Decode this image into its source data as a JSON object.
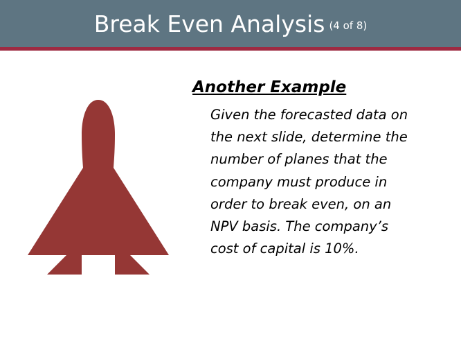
{
  "slide": {
    "title": "Break Even Analysis",
    "title_counter": "(4 of 8)",
    "subheading": "Another Example",
    "body": "Given the forecasted data on the next slide, determine the number of planes that the company must produce in order to break even, on an NPV basis. The company’s cost of capital is 10%."
  },
  "colors": {
    "title_bar": "#5e7582",
    "accent_rule": "#9e2a42",
    "plane": "#953735"
  },
  "icons": {
    "illustration": "airplane-icon"
  }
}
